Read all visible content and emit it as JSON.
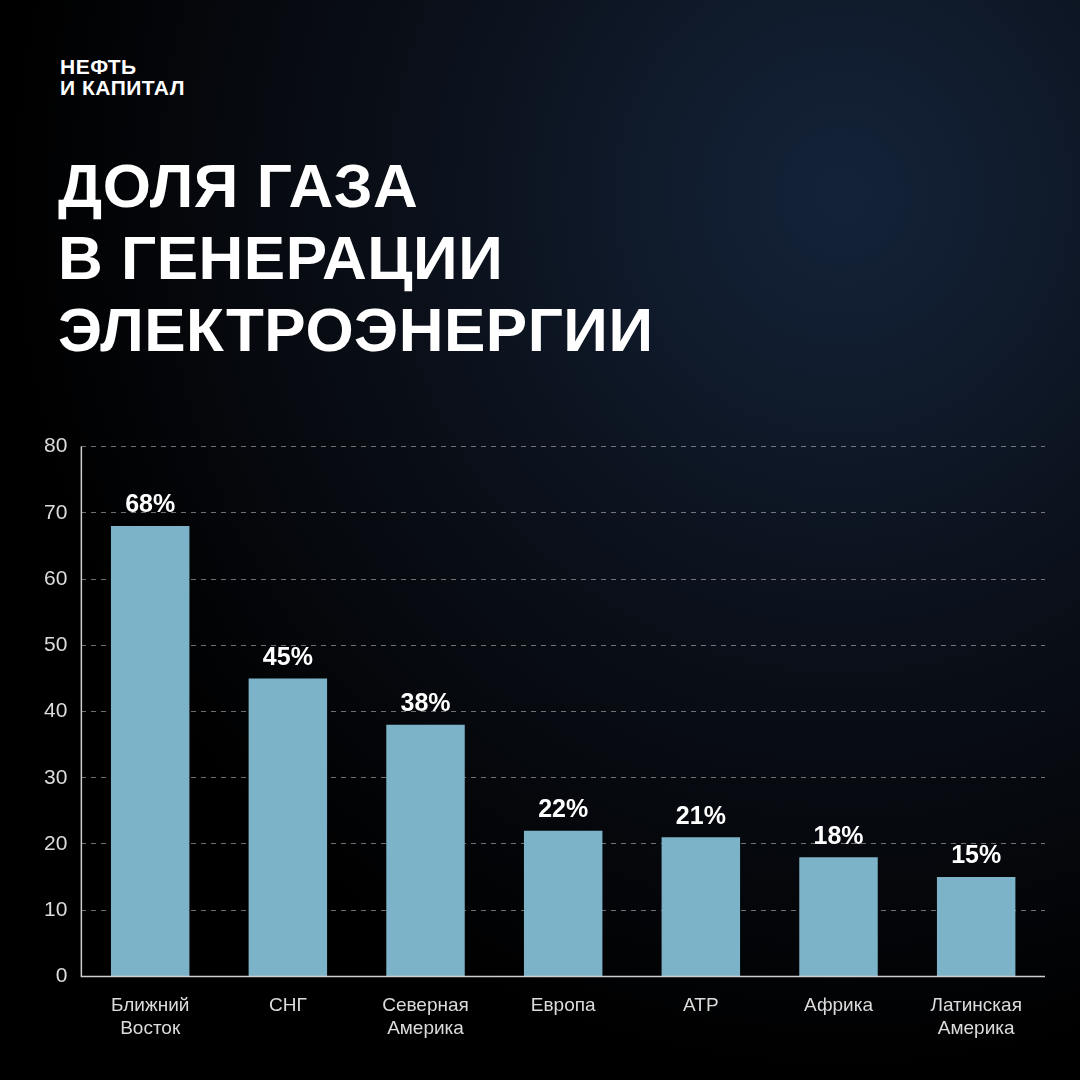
{
  "header": {
    "logo": "НЕФТЬ\nИ КАПИТАЛ"
  },
  "chart_data": {
    "type": "bar",
    "title": "ДОЛЯ ГАЗА\nВ ГЕНЕРАЦИИ\nЭЛЕКТРОЭНЕРГИИ",
    "categories": [
      "Ближний Восток",
      "СНГ",
      "Северная Америка",
      "Европа",
      "АТР",
      "Африка",
      "Латинская Америка"
    ],
    "values": [
      68,
      45,
      38,
      22,
      21,
      18,
      15
    ],
    "value_labels": [
      "68%",
      "45%",
      "38%",
      "22%",
      "21%",
      "18%",
      "15%"
    ],
    "color": "#7db3c9",
    "ylim": [
      0,
      80
    ],
    "yticks": [
      0,
      10,
      20,
      30,
      40,
      50,
      60,
      70,
      80
    ],
    "grid": true,
    "data_labels": true
  }
}
